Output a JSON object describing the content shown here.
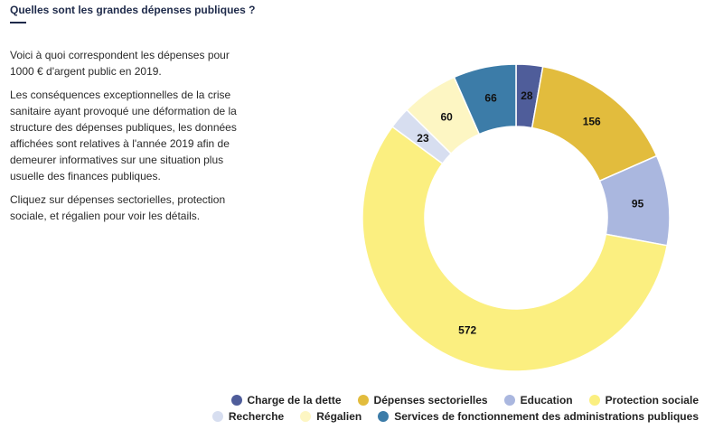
{
  "header": {
    "title": "Quelles sont les grandes dépenses publiques ?"
  },
  "intro": {
    "paragraphs": [
      "Voici à quoi correspondent les dépenses pour 1000 € d'argent public en 2019.",
      "Les conséquences exceptionnelles de la crise sanitaire ayant provoqué une déformation de la structure des dépenses publiques, les données affichées sont relatives à l'année 2019 afin de demeurer informatives sur une situation plus usuelle des finances publiques.",
      "Cliquez sur dépenses sectorielles, protection sociale, et régalien pour voir les détails."
    ]
  },
  "chart_data": {
    "type": "pie",
    "donut": true,
    "title": "",
    "legend_placement": "bottom-right",
    "categories": [
      "Charge de la dette",
      "Dépenses sectorielles",
      "Education",
      "Protection sociale",
      "Recherche",
      "Régalien",
      "Services de fonctionnement des administrations publiques"
    ],
    "values": [
      28,
      156,
      95,
      572,
      23,
      60,
      66
    ],
    "colors": [
      "#4f5d9a",
      "#e2bc3d",
      "#aab7df",
      "#fbef80",
      "#d7def0",
      "#fdf6c3",
      "#3c7ca8"
    ]
  }
}
